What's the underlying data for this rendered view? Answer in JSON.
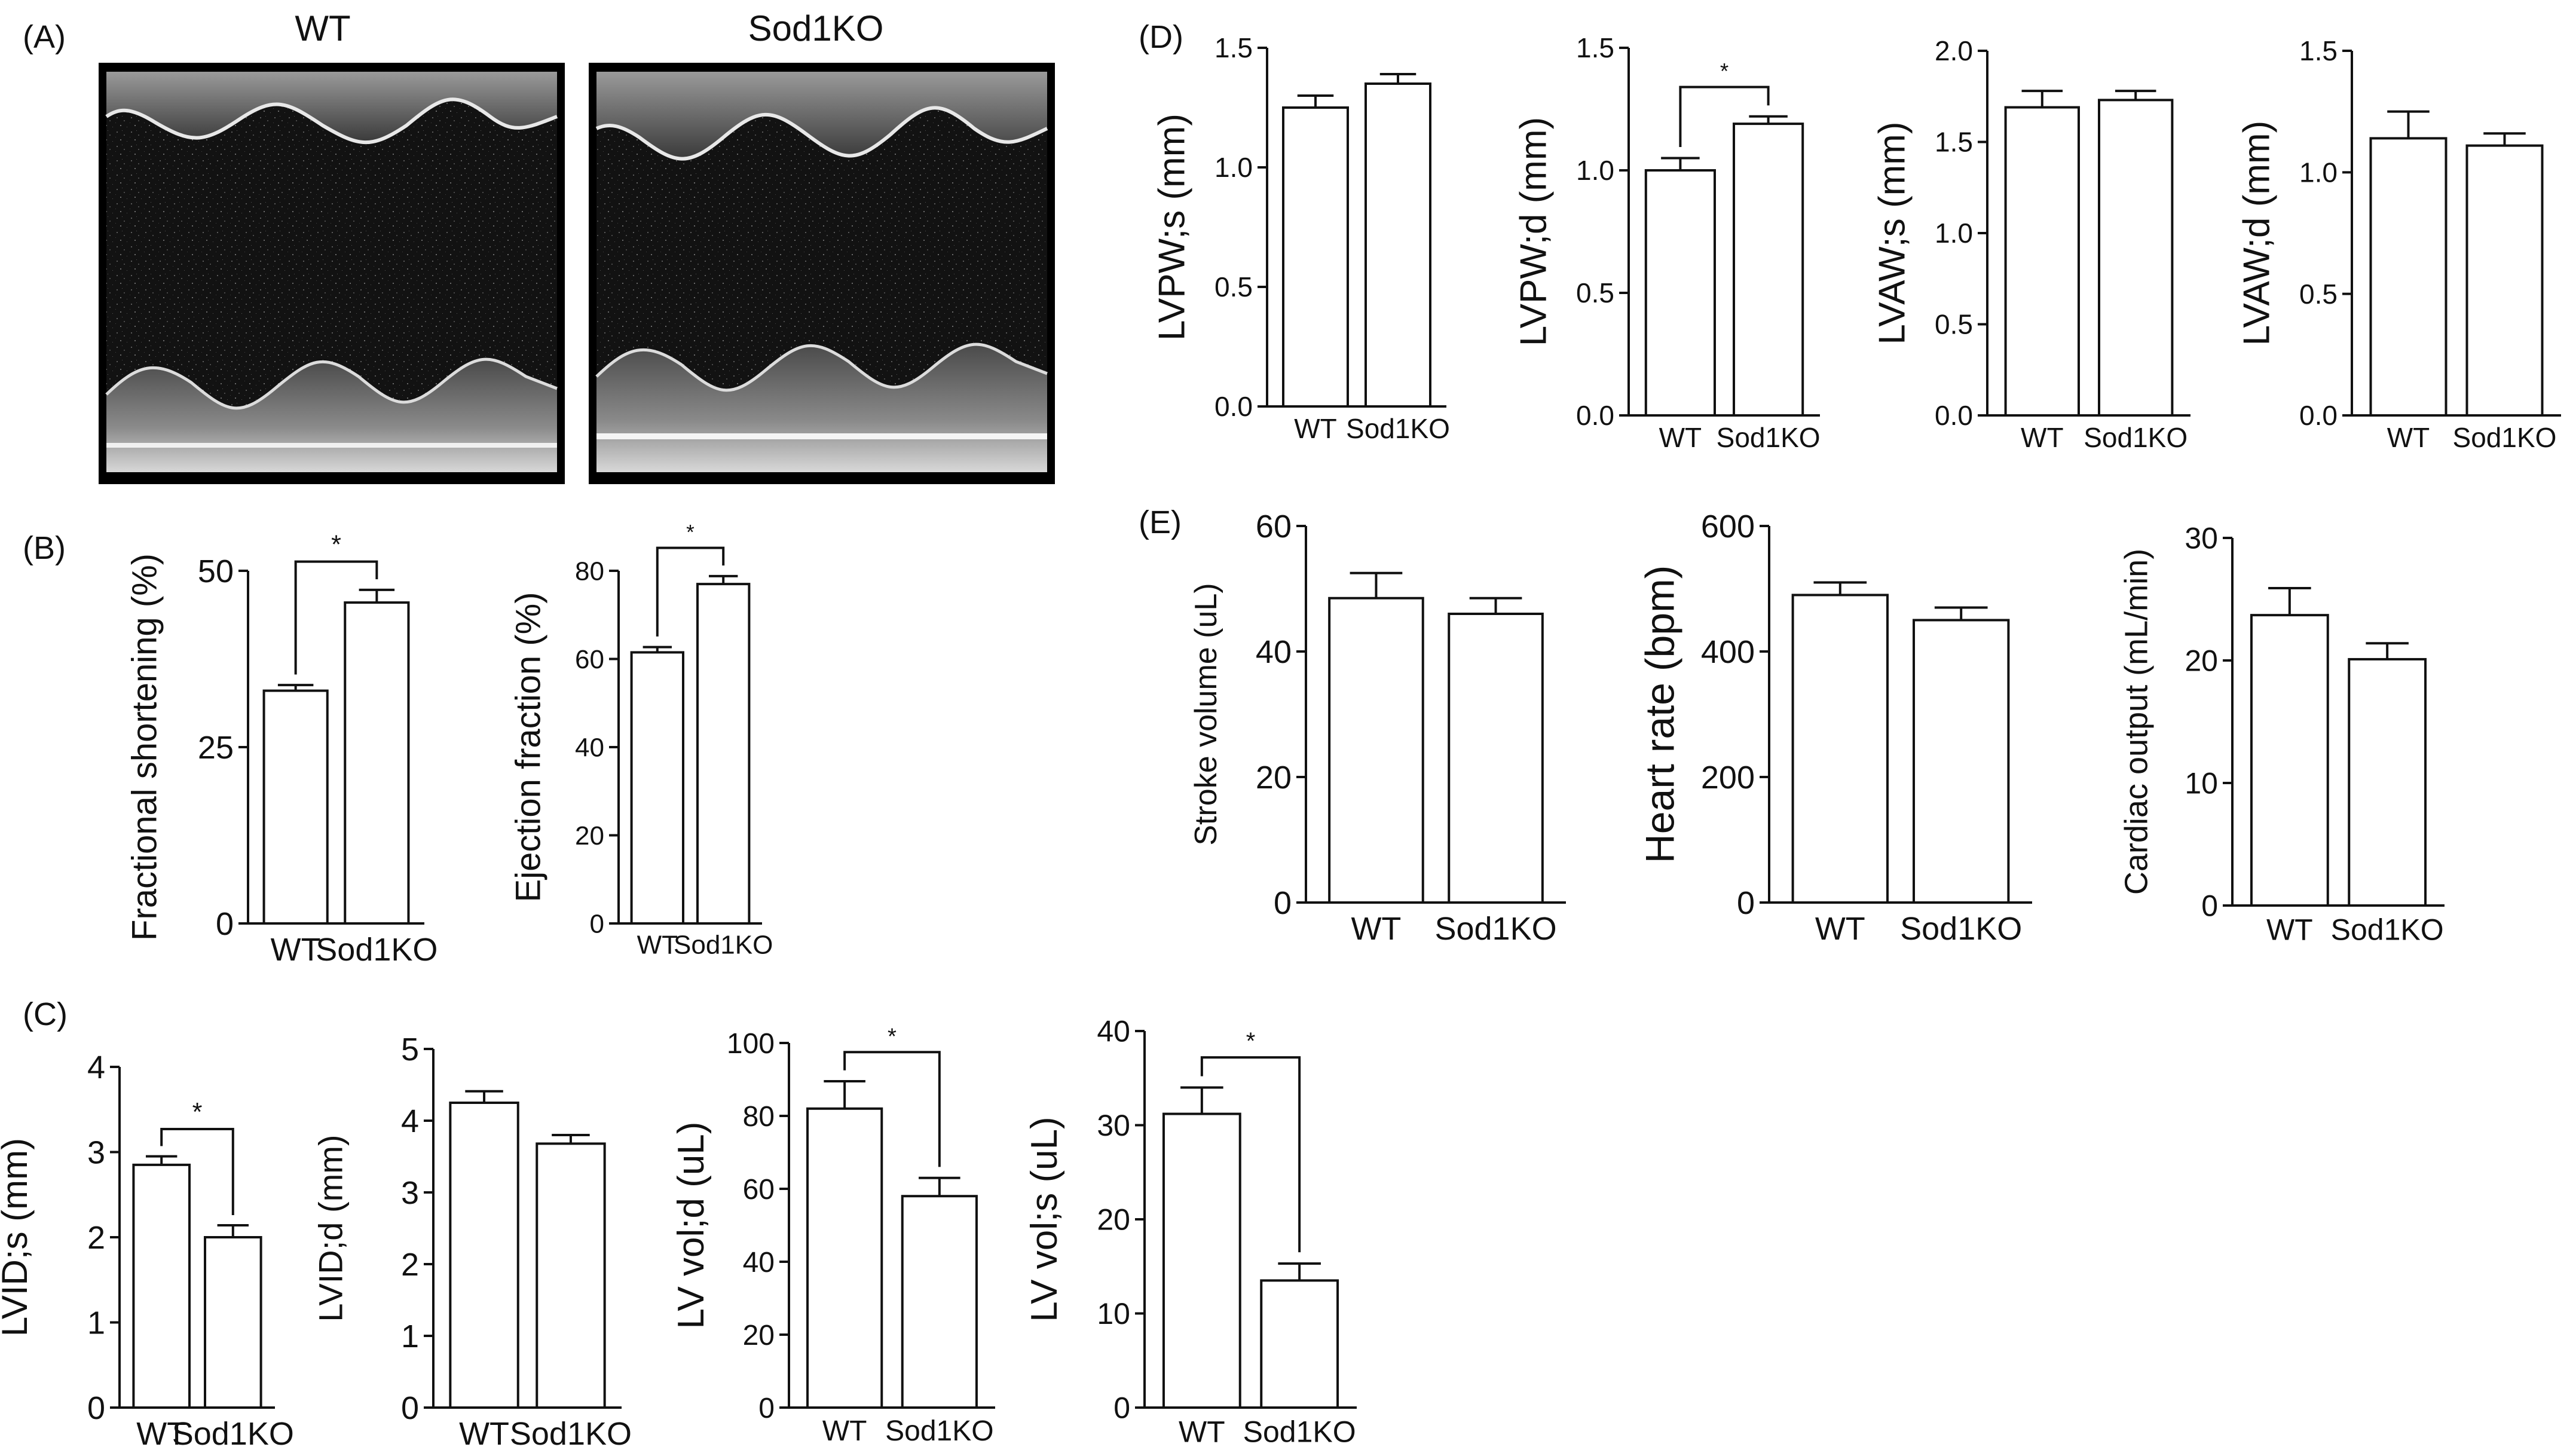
{
  "panels": {
    "A": "(A)",
    "B": "(B)",
    "C": "(C)",
    "D": "(D)",
    "E": "(E)"
  },
  "mmode": {
    "left_title": "WT",
    "right_title": "Sod1KO"
  },
  "chart_data": [
    {
      "id": "B1",
      "type": "bar",
      "categories": [
        "WT",
        "Sod1KO"
      ],
      "values": [
        33,
        45.5
      ],
      "errors": [
        0.8,
        1.8
      ],
      "ylabel": "Fractional shortening (%)",
      "ylim": [
        0,
        50
      ],
      "yticks": [
        "0",
        "25",
        "50"
      ],
      "significance": "*"
    },
    {
      "id": "B2",
      "type": "bar",
      "categories": [
        "WT",
        "Sod1KO"
      ],
      "values": [
        61.5,
        77
      ],
      "errors": [
        1.2,
        1.8
      ],
      "ylabel": "Ejection fraction (%)",
      "ylim": [
        0,
        80
      ],
      "yticks": [
        "0",
        "20",
        "40",
        "60",
        "80"
      ],
      "significance": "*"
    },
    {
      "id": "C1",
      "type": "bar",
      "categories": [
        "WT",
        "Sod1KO"
      ],
      "values": [
        2.85,
        2.0
      ],
      "errors": [
        0.1,
        0.14
      ],
      "ylabel": "LVID;s (mm)",
      "ylim": [
        0,
        4
      ],
      "yticks": [
        "0",
        "1",
        "2",
        "3",
        "4"
      ],
      "significance": "*"
    },
    {
      "id": "C2",
      "type": "bar",
      "categories": [
        "WT",
        "Sod1KO"
      ],
      "values": [
        4.25,
        3.68
      ],
      "errors": [
        0.16,
        0.12
      ],
      "ylabel": "LVID;d (mm)",
      "ylim": [
        0,
        5
      ],
      "yticks": [
        "0",
        "1",
        "2",
        "3",
        "4",
        "5"
      ],
      "significance": ""
    },
    {
      "id": "C3",
      "type": "bar",
      "categories": [
        "WT",
        "Sod1KO"
      ],
      "values": [
        82,
        58
      ],
      "errors": [
        7.5,
        5
      ],
      "ylabel": "LV vol;d (uL)",
      "ylim": [
        0,
        100
      ],
      "yticks": [
        "0",
        "20",
        "40",
        "60",
        "80",
        "100"
      ],
      "significance": "*"
    },
    {
      "id": "C4",
      "type": "bar",
      "categories": [
        "WT",
        "Sod1KO"
      ],
      "values": [
        31.2,
        13.5
      ],
      "errors": [
        2.8,
        1.8
      ],
      "ylabel": "LV vol;s (uL)",
      "ylim": [
        0,
        40
      ],
      "yticks": [
        "0",
        "10",
        "20",
        "30",
        "40"
      ],
      "significance": "*"
    },
    {
      "id": "D1",
      "type": "bar",
      "categories": [
        "WT",
        "Sod1KO"
      ],
      "values": [
        1.25,
        1.35
      ],
      "errors": [
        0.05,
        0.04
      ],
      "ylabel": "LVPW;s (mm)",
      "ylim": [
        0,
        1.5
      ],
      "yticks": [
        "0.0",
        "0.5",
        "1.0",
        "1.5"
      ],
      "significance": ""
    },
    {
      "id": "D2",
      "type": "bar",
      "categories": [
        "WT",
        "Sod1KO"
      ],
      "values": [
        1.0,
        1.19
      ],
      "errors": [
        0.05,
        0.03
      ],
      "ylabel": "LVPW;d (mm)",
      "ylim": [
        0,
        1.5
      ],
      "yticks": [
        "0.0",
        "0.5",
        "1.0",
        "1.5"
      ],
      "significance": "*"
    },
    {
      "id": "D3",
      "type": "bar",
      "categories": [
        "WT",
        "Sod1KO"
      ],
      "values": [
        1.69,
        1.73
      ],
      "errors": [
        0.09,
        0.05
      ],
      "ylabel": "LVAW;s (mm)",
      "ylim": [
        0,
        2.0
      ],
      "yticks": [
        "0.0",
        "0.5",
        "1.0",
        "1.5",
        "2.0"
      ],
      "significance": ""
    },
    {
      "id": "D4",
      "type": "bar",
      "categories": [
        "WT",
        "Sod1KO"
      ],
      "values": [
        1.14,
        1.11
      ],
      "errors": [
        0.11,
        0.05
      ],
      "ylabel": "LVAW;d (mm)",
      "ylim": [
        0,
        1.5
      ],
      "yticks": [
        "0.0",
        "0.5",
        "1.0",
        "1.5"
      ],
      "significance": ""
    },
    {
      "id": "E1",
      "type": "bar",
      "categories": [
        "WT",
        "Sod1KO"
      ],
      "values": [
        48.5,
        46
      ],
      "errors": [
        4,
        2.5
      ],
      "ylabel": "Stroke volume (uL)",
      "ylim": [
        0,
        60
      ],
      "yticks": [
        "0",
        "20",
        "40",
        "60"
      ],
      "significance": ""
    },
    {
      "id": "E2",
      "type": "bar",
      "categories": [
        "WT",
        "Sod1KO"
      ],
      "values": [
        490,
        450
      ],
      "errors": [
        20,
        20
      ],
      "ylabel": "Heart rate (bpm)",
      "ylim": [
        0,
        600
      ],
      "yticks": [
        "0",
        "200",
        "400",
        "600"
      ],
      "significance": ""
    },
    {
      "id": "E3",
      "type": "bar",
      "categories": [
        "WT",
        "Sod1KO"
      ],
      "values": [
        23.7,
        20.1
      ],
      "errors": [
        2.2,
        1.3
      ],
      "ylabel": "Cardiac output (mL/min)",
      "ylim": [
        0,
        30
      ],
      "yticks": [
        "0",
        "10",
        "20",
        "30"
      ],
      "significance": ""
    }
  ]
}
